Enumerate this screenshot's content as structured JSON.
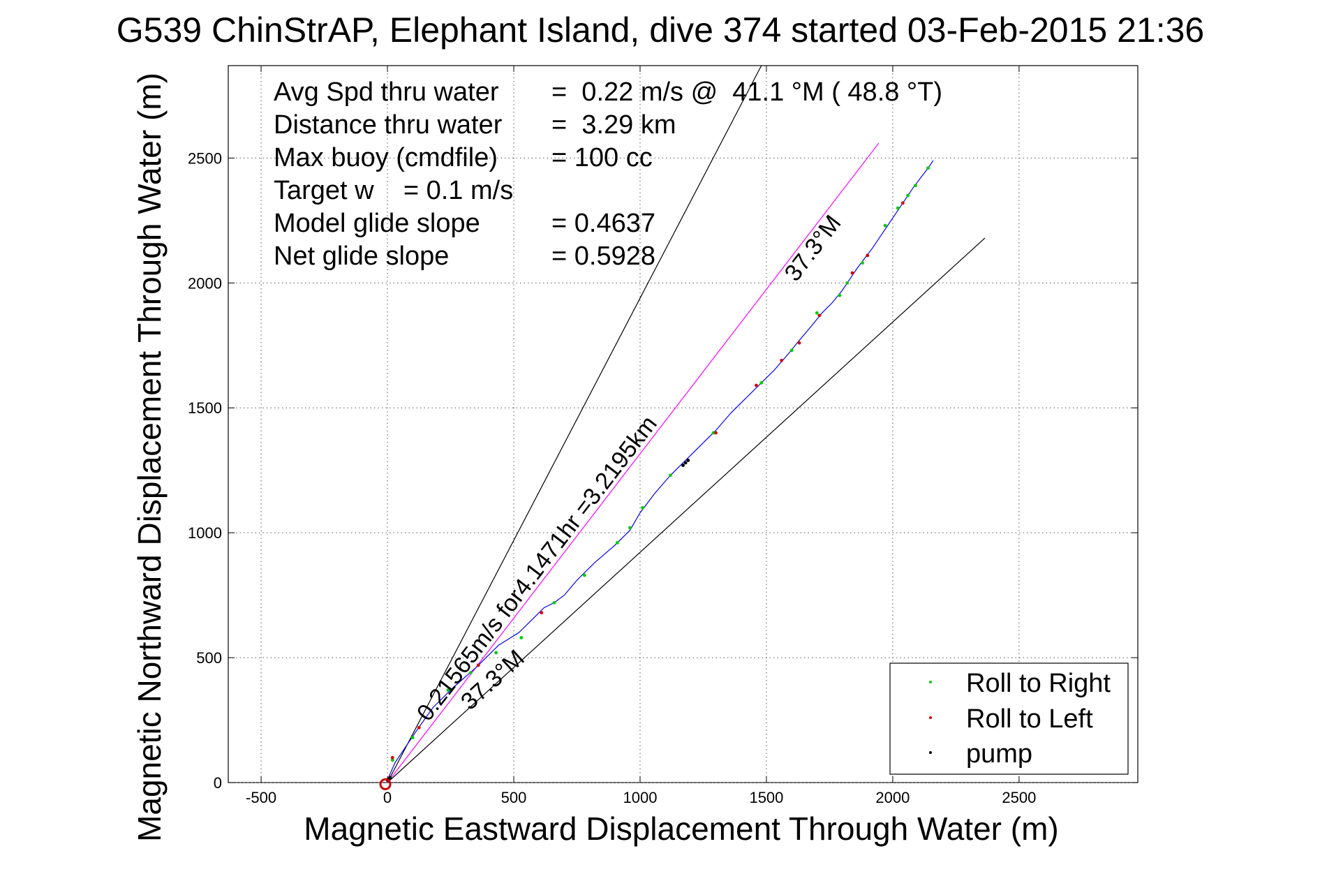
{
  "chart_data": {
    "type": "scatter",
    "title": "G539 ChinStrAP, Elephant Island, dive 374 started 03-Feb-2015 21:36",
    "xlabel": "Magnetic Eastward Displacement Through Water (m)",
    "ylabel": "Magnetic Northward Displacement Through Water (m)",
    "xlim": [
      -630,
      2970
    ],
    "ylim": [
      0,
      2870
    ],
    "xticks": [
      -500,
      0,
      500,
      1000,
      1500,
      2000,
      2500
    ],
    "yticks": [
      0,
      500,
      1000,
      1500,
      2000,
      2500
    ],
    "grid": true,
    "legend_position": "bottom-right",
    "legend": [
      {
        "label": "Roll to Right",
        "color": "#00cc00"
      },
      {
        "label": "Roll to Left",
        "color": "#dd0000"
      },
      {
        "label": "pump",
        "color": "#000000"
      }
    ],
    "info_text": [
      {
        "label": "Avg Spd thru water",
        "value": "=  0.22 m/s @  41.1 °M ( 48.8 °T)"
      },
      {
        "label": "Distance thru water",
        "value": "=  3.29 km"
      },
      {
        "label": "Max buoy (cmdfile)",
        "value": "= 100 cc"
      },
      {
        "label": "Target w    = 0.1 m/s",
        "value": ""
      },
      {
        "label": "Model glide slope",
        "value": "= 0.4637"
      },
      {
        "label": "Net glide slope",
        "value": "= 0.5928"
      }
    ],
    "annotations": {
      "current_text": "0.21565m/s for4.1471hr =3.2195km",
      "heading_upper": "37.3°M",
      "heading_lower": "37.3°M"
    },
    "lines": [
      {
        "name": "envelope-upper",
        "color": "#000000",
        "x": [
          0,
          1480
        ],
        "y": [
          0,
          2870
        ]
      },
      {
        "name": "envelope-lower",
        "color": "#000000",
        "x": [
          0,
          2365
        ],
        "y": [
          0,
          2180
        ]
      },
      {
        "name": "current",
        "color": "#ff00ff",
        "x": [
          0,
          1945
        ],
        "y": [
          0,
          2560
        ]
      }
    ],
    "track": {
      "color": "#0000ff",
      "x": [
        0,
        30,
        70,
        120,
        180,
        260,
        350,
        440,
        520,
        580,
        620,
        660,
        700,
        750,
        820,
        900,
        960,
        1000,
        1060,
        1120,
        1180,
        1240,
        1300,
        1360,
        1430,
        1470,
        1530,
        1590,
        1630,
        1680,
        1720,
        1760,
        1800,
        1820,
        1860,
        1890,
        1920,
        1960,
        2000,
        2040,
        2080,
        2110,
        2140,
        2160
      ],
      "y": [
        10,
        80,
        140,
        215,
        300,
        380,
        460,
        550,
        600,
        660,
        700,
        720,
        750,
        810,
        880,
        950,
        1010,
        1080,
        1160,
        1230,
        1290,
        1350,
        1410,
        1480,
        1550,
        1590,
        1650,
        1720,
        1770,
        1830,
        1880,
        1920,
        1970,
        2000,
        2060,
        2100,
        2140,
        2200,
        2260,
        2320,
        2380,
        2420,
        2460,
        2490
      ]
    },
    "roll_right": {
      "x": [
        20,
        100,
        240,
        330,
        430,
        530,
        660,
        780,
        910,
        960,
        1010,
        1120,
        1290,
        1480,
        1600,
        1700,
        1790,
        1820,
        1880,
        1970,
        2020,
        2060,
        2090,
        2140
      ],
      "y": [
        90,
        180,
        370,
        440,
        520,
        580,
        720,
        830,
        960,
        1020,
        1100,
        1230,
        1400,
        1600,
        1730,
        1880,
        1950,
        2000,
        2080,
        2230,
        2300,
        2350,
        2390,
        2460
      ]
    },
    "roll_left": {
      "x": [
        20,
        125,
        360,
        610,
        1300,
        1460,
        1560,
        1630,
        1710,
        1840,
        1900,
        2040
      ],
      "y": [
        100,
        220,
        470,
        680,
        1400,
        1590,
        1690,
        1760,
        1870,
        2040,
        2110,
        2320
      ]
    },
    "pump": {
      "x": [
        0,
        5,
        10,
        1170,
        1180,
        1190
      ],
      "y": [
        10,
        15,
        20,
        1270,
        1280,
        1290
      ]
    }
  }
}
